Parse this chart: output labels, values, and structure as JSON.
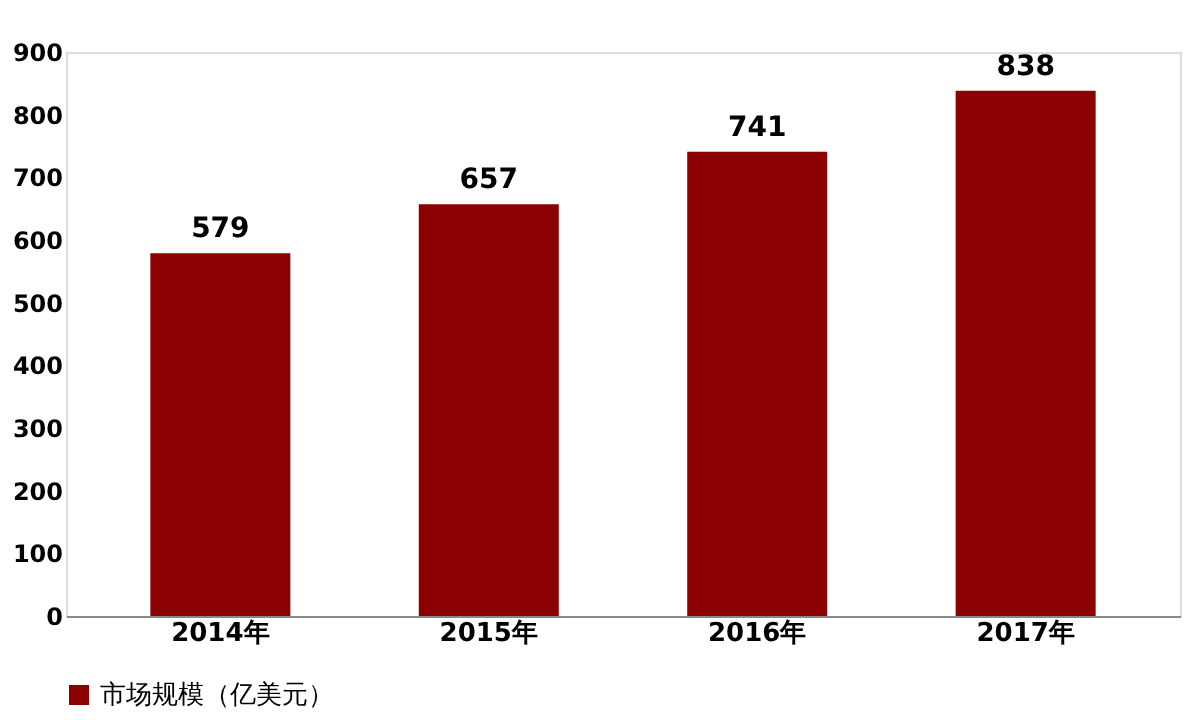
{
  "chart_data": {
    "type": "bar",
    "categories": [
      "2014年",
      "2015年",
      "2016年",
      "2017年"
    ],
    "series": [
      {
        "name": "市场规模（亿美元）",
        "color": "#8b0000",
        "values": [
          579,
          657,
          741,
          838
        ]
      }
    ],
    "ylim": [
      0,
      900
    ],
    "yticks": [
      0,
      100,
      200,
      300,
      400,
      500,
      600,
      700,
      800,
      900
    ],
    "grid": false,
    "legend": "bottom",
    "data_labels": true
  }
}
